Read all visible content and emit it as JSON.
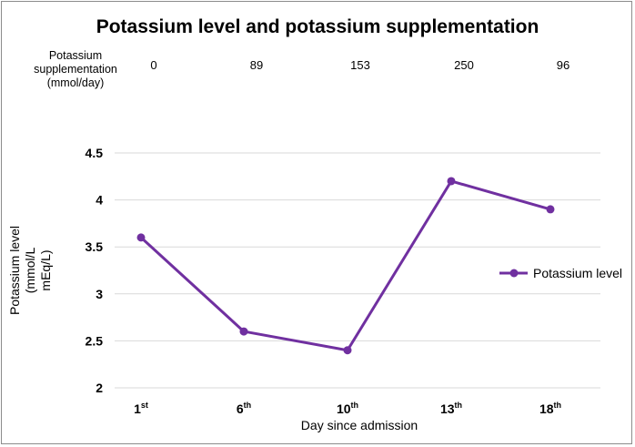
{
  "chart_data": {
    "type": "line",
    "title": "Potassium level and potassium supplementation",
    "supplementation": {
      "label_lines": [
        "Potassium",
        "supplementation",
        "(mmol/day)"
      ],
      "values": [
        "0",
        "89",
        "153",
        "250",
        "96"
      ]
    },
    "categories": [
      {
        "num": "1",
        "sup": "st"
      },
      {
        "num": "6",
        "sup": "th"
      },
      {
        "num": "10",
        "sup": "th"
      },
      {
        "num": "13",
        "sup": "th"
      },
      {
        "num": "18",
        "sup": "th"
      }
    ],
    "series": [
      {
        "name": "Potassium level",
        "values": [
          3.6,
          2.6,
          2.4,
          4.2,
          3.9
        ],
        "color": "#7030a0"
      }
    ],
    "xlabel": "Day since admission",
    "ylabel_lines": [
      "Potassium level",
      "(mmol/L",
      "mEq/L)"
    ],
    "ylim": [
      2,
      4.5
    ],
    "yticks": [
      "2",
      "2.5",
      "3",
      "3.5",
      "4",
      "4.5"
    ],
    "grid": true,
    "legend_position": "right"
  }
}
